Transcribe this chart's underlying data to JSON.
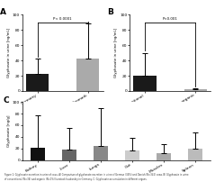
{
  "panel_A": {
    "categories": [
      "Germany",
      "Denmark"
    ],
    "values": [
      22,
      43
    ],
    "errors_up": [
      20,
      45
    ],
    "colors": [
      "#1a1a1a",
      "#aaaaaa"
    ],
    "ylabel": "Glyphosate in urine [ng/mL]",
    "ylim": [
      0,
      100
    ],
    "yticks": [
      0,
      20,
      40,
      60,
      80,
      100
    ],
    "pvalue": "P< 0.0001",
    "label": "A"
  },
  "panel_B": {
    "categories": [
      "Conventional",
      "GMO-free organic"
    ],
    "values": [
      20,
      2
    ],
    "errors_up": [
      30,
      1
    ],
    "colors": [
      "#1a1a1a",
      "#aaaaaa"
    ],
    "ylabel": "Glyphosate in urine [ng/mL]",
    "ylim": [
      0,
      100
    ],
    "yticks": [
      0,
      20,
      40,
      60,
      80,
      100
    ],
    "pvalue": "P<0.001",
    "label": "B"
  },
  "panel_C": {
    "categories": [
      "Kidney",
      "Liver",
      "Lungs",
      "Gut",
      "Muscles",
      "Spleen"
    ],
    "values": [
      22,
      18,
      25,
      16,
      12,
      20
    ],
    "errors_up": [
      55,
      38,
      65,
      22,
      15,
      28
    ],
    "colors": [
      "#111111",
      "#666666",
      "#888888",
      "#cccccc",
      "#aaaaaa",
      "#bbbbbb"
    ],
    "ylabel": "Glyphosate [ng/g]",
    "ylim": [
      0,
      100
    ],
    "yticks": [
      0,
      20,
      40,
      60,
      80,
      100
    ],
    "label": "C"
  },
  "caption": "Figure 1: Glyphosate excretion in urine of cows. A) Comparison of glyphosate excretion in urine of German (34%) and Danish (N=342) cows. B) Glyphosate in urine\nof conventional (N=34) and organic (N=1%) livestock husbandry in Germany. C: Glyphosate accumulation in different organs.",
  "bg_color": "#ffffff"
}
